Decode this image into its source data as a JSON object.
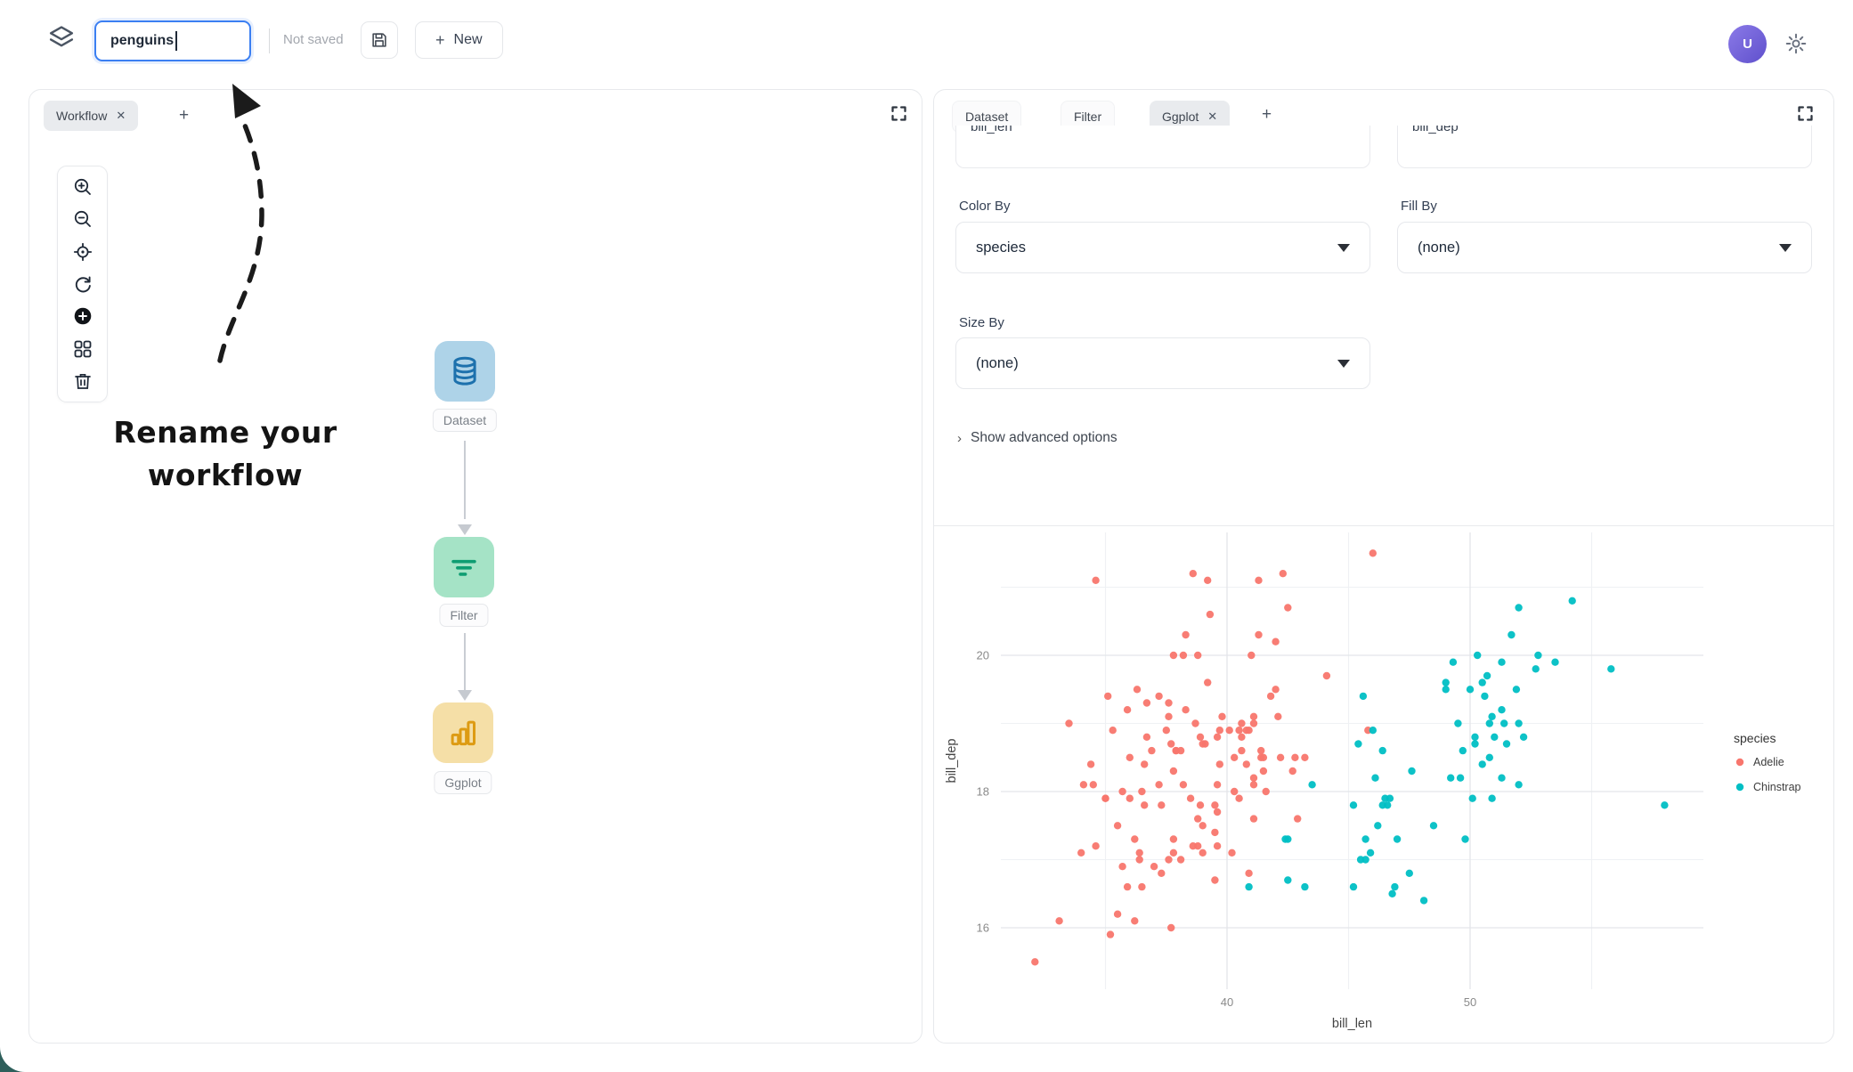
{
  "topbar": {
    "workflow_name_value": "penguins",
    "save_status": "Not saved",
    "new_button": {
      "plus": "+",
      "label": "New"
    },
    "avatar_initial": "U"
  },
  "annotation": {
    "line1": "Rename your",
    "line2": "workflow"
  },
  "workflow_panel": {
    "tab_label": "Workflow",
    "tab_close_glyph": "✕",
    "add_tab_glyph": "+",
    "nodes": [
      {
        "label": "Dataset",
        "bg": "#aed3e8",
        "icon_color": "#1d71ad",
        "icon": "database-icon"
      },
      {
        "label": "Filter",
        "bg": "#a5e3c6",
        "icon_color": "#0f9d72",
        "icon": "filter-lines-icon"
      },
      {
        "label": "Ggplot",
        "bg": "#f5dfa7",
        "icon_color": "#dd9b13",
        "icon": "bar-chart-icon"
      }
    ]
  },
  "inspector_panel": {
    "tabs": [
      {
        "label": "Dataset"
      },
      {
        "label": "Filter"
      },
      {
        "label": "Ggplot",
        "close_glyph": "✕"
      }
    ],
    "add_tab_glyph": "+",
    "clipped_inputs": {
      "x_var": "bill_len",
      "y_var": "bill_dep"
    },
    "fields": [
      {
        "label": "Color By",
        "value": "species"
      },
      {
        "label": "Fill By",
        "value": "(none)"
      },
      {
        "label": "Size By",
        "value": "(none)"
      }
    ],
    "advanced_chevron": "›",
    "advanced_label": "Show advanced options"
  },
  "chart_data": {
    "type": "scatter",
    "title": "",
    "xlabel": "bill_len",
    "ylabel": "bill_dep",
    "xlim": [
      30.7,
      59.6
    ],
    "ylim": [
      15.1,
      21.8
    ],
    "x_ticks": [
      40,
      50
    ],
    "y_ticks": [
      16,
      18,
      20
    ],
    "x_minor": [
      35,
      45,
      55
    ],
    "y_minor": [
      17,
      19,
      21
    ],
    "grid": true,
    "legend_position": "right",
    "legend_title": "species",
    "series": [
      {
        "name": "Adelie",
        "color": "#F8766D",
        "points": [
          [
            39.1,
            18.7
          ],
          [
            39.5,
            17.4
          ],
          [
            40.3,
            18.0
          ],
          [
            36.7,
            19.3
          ],
          [
            39.3,
            20.6
          ],
          [
            38.9,
            17.8
          ],
          [
            39.2,
            19.6
          ],
          [
            34.1,
            18.1
          ],
          [
            42.0,
            20.2
          ],
          [
            37.8,
            17.1
          ],
          [
            37.8,
            17.3
          ],
          [
            41.1,
            17.6
          ],
          [
            38.6,
            21.2
          ],
          [
            34.6,
            21.1
          ],
          [
            36.6,
            17.8
          ],
          [
            38.7,
            19.0
          ],
          [
            42.5,
            20.7
          ],
          [
            34.4,
            18.4
          ],
          [
            46.0,
            21.5
          ],
          [
            37.8,
            18.3
          ],
          [
            37.7,
            18.7
          ],
          [
            35.9,
            19.2
          ],
          [
            38.2,
            18.1
          ],
          [
            38.8,
            17.2
          ],
          [
            35.3,
            18.9
          ],
          [
            40.6,
            18.6
          ],
          [
            40.5,
            17.9
          ],
          [
            37.9,
            18.6
          ],
          [
            40.5,
            18.9
          ],
          [
            39.5,
            16.7
          ],
          [
            37.2,
            18.1
          ],
          [
            39.5,
            17.8
          ],
          [
            40.9,
            18.9
          ],
          [
            36.4,
            17.0
          ],
          [
            39.2,
            21.1
          ],
          [
            38.8,
            20.0
          ],
          [
            42.2,
            18.5
          ],
          [
            37.6,
            19.3
          ],
          [
            39.8,
            19.1
          ],
          [
            36.5,
            18.0
          ],
          [
            40.8,
            18.4
          ],
          [
            36.0,
            18.5
          ],
          [
            44.1,
            19.7
          ],
          [
            37.0,
            16.9
          ],
          [
            39.6,
            18.8
          ],
          [
            41.1,
            19.0
          ],
          [
            37.5,
            18.9
          ],
          [
            36.0,
            17.9
          ],
          [
            42.3,
            21.2
          ],
          [
            39.6,
            17.7
          ],
          [
            40.1,
            18.9
          ],
          [
            35.0,
            17.9
          ],
          [
            42.0,
            19.5
          ],
          [
            34.5,
            18.1
          ],
          [
            41.4,
            18.6
          ],
          [
            39.0,
            17.5
          ],
          [
            40.6,
            18.8
          ],
          [
            36.5,
            16.6
          ],
          [
            37.6,
            19.1
          ],
          [
            35.7,
            16.9
          ],
          [
            41.3,
            21.1
          ],
          [
            37.6,
            17.0
          ],
          [
            41.1,
            18.2
          ],
          [
            36.4,
            17.1
          ],
          [
            41.6,
            18.0
          ],
          [
            35.5,
            16.2
          ],
          [
            41.1,
            19.1
          ],
          [
            35.9,
            16.6
          ],
          [
            41.8,
            19.4
          ],
          [
            33.5,
            19.0
          ],
          [
            39.7,
            18.4
          ],
          [
            39.6,
            17.2
          ],
          [
            45.8,
            18.9
          ],
          [
            35.5,
            17.5
          ],
          [
            42.8,
            18.5
          ],
          [
            40.9,
            16.8
          ],
          [
            37.2,
            19.4
          ],
          [
            36.2,
            16.1
          ],
          [
            42.1,
            19.1
          ],
          [
            34.6,
            17.2
          ],
          [
            42.9,
            17.6
          ],
          [
            36.7,
            18.8
          ],
          [
            35.1,
            19.4
          ],
          [
            37.3,
            17.8
          ],
          [
            41.3,
            20.3
          ],
          [
            36.3,
            19.5
          ],
          [
            36.9,
            18.6
          ],
          [
            38.3,
            19.2
          ],
          [
            38.9,
            18.8
          ],
          [
            35.7,
            18.0
          ],
          [
            41.1,
            18.1
          ],
          [
            34.0,
            17.1
          ],
          [
            39.6,
            18.1
          ],
          [
            36.2,
            17.3
          ],
          [
            40.8,
            18.9
          ],
          [
            38.1,
            18.6
          ],
          [
            40.3,
            18.5
          ],
          [
            33.1,
            16.1
          ],
          [
            43.2,
            18.5
          ],
          [
            35.0,
            17.9
          ],
          [
            41.0,
            20.0
          ],
          [
            37.7,
            16.0
          ],
          [
            37.8,
            20.0
          ],
          [
            37.9,
            18.6
          ],
          [
            39.7,
            18.9
          ],
          [
            38.6,
            17.2
          ],
          [
            38.2,
            20.0
          ],
          [
            38.1,
            17.0
          ],
          [
            38.3,
            20.3
          ],
          [
            40.2,
            17.1
          ],
          [
            39.0,
            18.7
          ],
          [
            42.7,
            18.3
          ],
          [
            36.6,
            18.4
          ],
          [
            37.3,
            16.8
          ],
          [
            41.5,
            18.3
          ],
          [
            39.0,
            17.1
          ],
          [
            38.5,
            17.9
          ],
          [
            41.4,
            18.5
          ],
          [
            35.2,
            15.9
          ],
          [
            40.6,
            19.0
          ],
          [
            38.8,
            17.6
          ],
          [
            41.5,
            18.5
          ],
          [
            32.1,
            15.5
          ]
        ]
      },
      {
        "name": "Chinstrap",
        "color": "#00BFC4",
        "points": [
          [
            46.5,
            17.9
          ],
          [
            50.0,
            19.5
          ],
          [
            51.3,
            19.2
          ],
          [
            45.4,
            18.7
          ],
          [
            52.7,
            19.8
          ],
          [
            45.2,
            17.8
          ],
          [
            46.1,
            18.2
          ],
          [
            51.3,
            18.2
          ],
          [
            46.0,
            18.9
          ],
          [
            51.3,
            19.9
          ],
          [
            46.6,
            17.8
          ],
          [
            51.7,
            20.3
          ],
          [
            47.0,
            17.3
          ],
          [
            52.0,
            18.1
          ],
          [
            45.9,
            17.1
          ],
          [
            50.5,
            19.6
          ],
          [
            50.3,
            20.0
          ],
          [
            58.0,
            17.8
          ],
          [
            46.4,
            18.6
          ],
          [
            49.2,
            18.2
          ],
          [
            42.4,
            17.3
          ],
          [
            48.5,
            17.5
          ],
          [
            43.2,
            16.6
          ],
          [
            50.6,
            19.4
          ],
          [
            46.7,
            17.9
          ],
          [
            52.0,
            19.0
          ],
          [
            50.5,
            18.4
          ],
          [
            49.5,
            19.0
          ],
          [
            46.4,
            17.8
          ],
          [
            52.8,
            20.0
          ],
          [
            40.9,
            16.6
          ],
          [
            54.2,
            20.8
          ],
          [
            42.5,
            16.7
          ],
          [
            51.0,
            18.8
          ],
          [
            49.7,
            18.6
          ],
          [
            47.5,
            16.8
          ],
          [
            47.6,
            18.3
          ],
          [
            52.0,
            20.7
          ],
          [
            46.9,
            16.6
          ],
          [
            53.5,
            19.9
          ],
          [
            49.0,
            19.5
          ],
          [
            46.2,
            17.5
          ],
          [
            50.9,
            19.1
          ],
          [
            45.5,
            17.0
          ],
          [
            50.9,
            17.9
          ],
          [
            50.8,
            18.5
          ],
          [
            50.1,
            17.9
          ],
          [
            49.0,
            19.6
          ],
          [
            51.5,
            18.7
          ],
          [
            49.8,
            17.3
          ],
          [
            48.1,
            16.4
          ],
          [
            51.4,
            19.0
          ],
          [
            45.7,
            17.3
          ],
          [
            50.7,
            19.7
          ],
          [
            42.5,
            17.3
          ],
          [
            52.2,
            18.8
          ],
          [
            45.2,
            16.6
          ],
          [
            49.3,
            19.9
          ],
          [
            50.2,
            18.8
          ],
          [
            45.6,
            19.4
          ],
          [
            51.9,
            19.5
          ],
          [
            46.8,
            16.5
          ],
          [
            45.7,
            17.0
          ],
          [
            55.8,
            19.8
          ],
          [
            43.5,
            18.1
          ],
          [
            49.6,
            18.2
          ],
          [
            50.8,
            19.0
          ],
          [
            50.2,
            18.7
          ]
        ]
      }
    ]
  }
}
